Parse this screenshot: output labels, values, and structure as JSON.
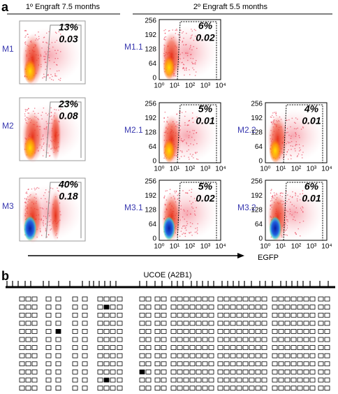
{
  "panel_a": {
    "label": "a",
    "primary_header": "1º Engraft 7.5 months",
    "secondary_header": "2º Engraft 5.5 months",
    "primary_plots": [
      {
        "name": "M1",
        "percent": "13%",
        "ratio": "0.03"
      },
      {
        "name": "M2",
        "percent": "23%",
        "ratio": "0.08"
      },
      {
        "name": "M3",
        "percent": "40%",
        "ratio": "0.18"
      }
    ],
    "secondary_plots": [
      {
        "name": "M1.1",
        "percent": "6%",
        "ratio": "0.02"
      },
      {
        "name": "M2.1",
        "percent": "5%",
        "ratio": "0.01"
      },
      {
        "name": "M2.2",
        "percent": "4%",
        "ratio": "0.01"
      },
      {
        "name": "M3.1",
        "percent": "5%",
        "ratio": "0.02"
      },
      {
        "name": "M3.2",
        "percent": "6%",
        "ratio": "0.01"
      }
    ],
    "y_ticks": [
      "256",
      "192",
      "128",
      "64",
      "0"
    ],
    "x_ticks": [
      "10⁰",
      "10¹",
      "10²",
      "10³",
      "10⁴"
    ],
    "x_axis_label": "EGFP"
  },
  "panel_b": {
    "label": "b",
    "title": "UCOE (A2B1)",
    "methylated_cells": [
      {
        "row": 1,
        "col": 8
      },
      {
        "row": 4,
        "col": 4
      },
      {
        "row": 9,
        "col": 11
      },
      {
        "row": 10,
        "col": 8
      }
    ]
  }
}
